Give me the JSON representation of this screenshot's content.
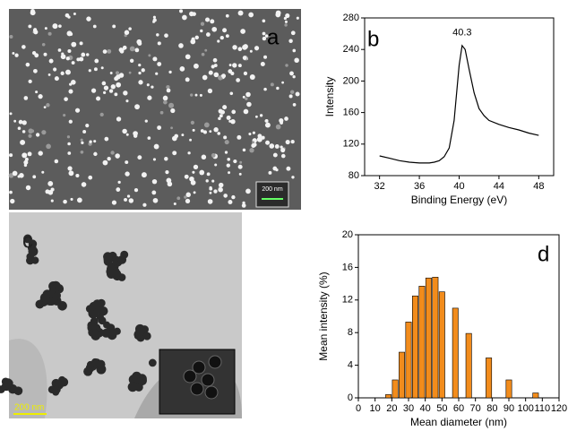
{
  "images": [
    {
      "panel_label": "a",
      "scale_bar": "200 nm"
    },
    {
      "panel_label": "c",
      "scale_bar": "200 nm"
    }
  ],
  "chart_data": [
    {
      "type": "line",
      "panel_label": "b",
      "xlabel": "Binding Energy (eV)",
      "ylabel": "Intensity",
      "annotation": "40.3",
      "x": [
        32,
        33,
        34,
        35,
        36,
        37,
        37.5,
        38,
        38.5,
        39,
        39.5,
        40,
        40.3,
        40.6,
        41,
        41.5,
        42,
        42.5,
        43,
        44,
        45,
        46,
        47,
        48
      ],
      "values": [
        105,
        102,
        99,
        97,
        96,
        96,
        97,
        99,
        104,
        115,
        150,
        220,
        245,
        240,
        215,
        185,
        165,
        156,
        150,
        145,
        141,
        138,
        134,
        131
      ],
      "color": "#000000",
      "xlim": [
        30.5,
        49.5
      ],
      "xticks": [
        32,
        36,
        40,
        44,
        48
      ],
      "ylim": [
        80,
        280
      ],
      "yticks": [
        80,
        120,
        160,
        200,
        240,
        280
      ]
    },
    {
      "type": "bar",
      "panel_label": "d",
      "xlabel": "Mean diameter (nm)",
      "ylabel": "Mean intensity (%)",
      "x": [
        18,
        22,
        26,
        30,
        34,
        38,
        42,
        46,
        50,
        58,
        66,
        78,
        90,
        106
      ],
      "values": [
        0.4,
        2.2,
        5.6,
        9.3,
        12.5,
        13.7,
        14.7,
        14.8,
        13.0,
        11.0,
        7.9,
        4.9,
        2.2,
        0.6
      ],
      "color": "#f28c1c",
      "xlim": [
        0,
        120
      ],
      "xticks": [
        0,
        10,
        20,
        30,
        40,
        50,
        60,
        70,
        80,
        90,
        100,
        110,
        120
      ],
      "ylim": [
        0,
        20
      ],
      "yticks": [
        0,
        4,
        8,
        12,
        16,
        20
      ]
    }
  ]
}
